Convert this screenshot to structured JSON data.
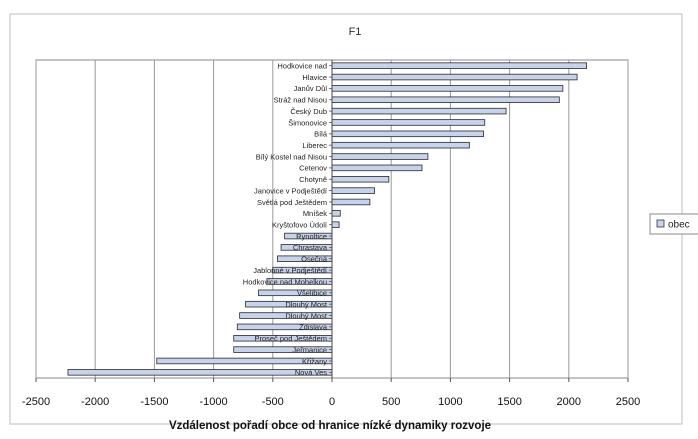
{
  "chart_data": {
    "type": "bar",
    "orientation": "horizontal",
    "title": "F1",
    "xlabel": "Vzdálenost pořadí obce od hranice nízké dynamiky rozvoje",
    "ylabel": "",
    "xlim": [
      -2500,
      2500
    ],
    "xticks": [
      -2500,
      -2000,
      -1500,
      -1000,
      -500,
      0,
      500,
      1000,
      1500,
      2000,
      2500
    ],
    "grid": "vertical",
    "legend": {
      "position": "right",
      "label": "obec"
    },
    "series": [
      {
        "name": "obec",
        "color": "#c6d3ea"
      }
    ],
    "categories": [
      "Hodkovice nad",
      "Hlavice",
      "Janův Důl",
      "Stráž nad Nisou",
      "Český Dub",
      "Šimonovice",
      "Bílá",
      "Liberec",
      "Bílý Kostel nad Nisou",
      "Cetenov",
      "Chotyně",
      "Janovice v Podještědí",
      "Světlá pod Ještědem",
      "Mníšek",
      "Kryštofovo Údolí",
      "Rynoltice",
      "Chrastava",
      "Osečná",
      "Jablonné v Podještědí",
      "Hodkovice nad Mohelkou",
      "Všelibice",
      "Dlouhý Most",
      "Dlouhý Most",
      "Zdislava",
      "Proseč pod Ještědem",
      "Jeřmanice",
      "Křižany",
      "Nová Ves"
    ],
    "values": [
      2150,
      2070,
      1950,
      1920,
      1470,
      1290,
      1280,
      1160,
      810,
      760,
      480,
      360,
      320,
      70,
      60,
      -400,
      -430,
      -460,
      -500,
      -550,
      -620,
      -730,
      -780,
      -800,
      -830,
      -830,
      -1480,
      -2230
    ]
  }
}
